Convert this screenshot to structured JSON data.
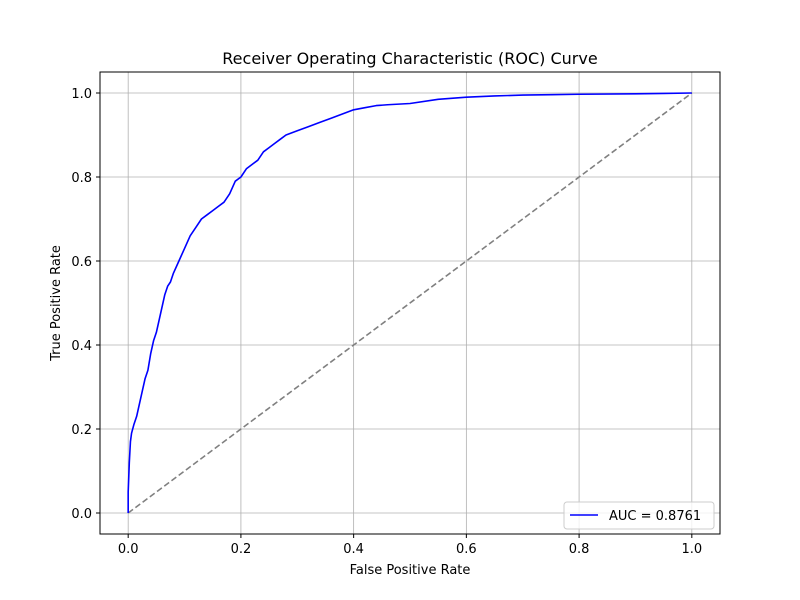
{
  "chart_data": {
    "type": "line",
    "title": "Receiver Operating Characteristic (ROC) Curve",
    "xlabel": "False Positive Rate",
    "ylabel": "True Positive Rate",
    "xlim": [
      -0.05,
      1.05
    ],
    "ylim": [
      -0.05,
      1.05
    ],
    "xticks": [
      0.0,
      0.2,
      0.4,
      0.6,
      0.8,
      1.0
    ],
    "yticks": [
      0.0,
      0.2,
      0.4,
      0.6,
      0.8,
      1.0
    ],
    "xtick_labels": [
      "0.0",
      "0.2",
      "0.4",
      "0.6",
      "0.8",
      "1.0"
    ],
    "ytick_labels": [
      "0.0",
      "0.2",
      "0.4",
      "0.6",
      "0.8",
      "1.0"
    ],
    "grid": true,
    "legend_position": "lower-right",
    "series": [
      {
        "name": "AUC = 0.8761",
        "color": "#0000ff",
        "style": "solid",
        "x": [
          0.0,
          0.0,
          0.002,
          0.004,
          0.006,
          0.01,
          0.015,
          0.02,
          0.025,
          0.03,
          0.035,
          0.04,
          0.045,
          0.05,
          0.055,
          0.06,
          0.065,
          0.07,
          0.075,
          0.08,
          0.09,
          0.1,
          0.11,
          0.12,
          0.13,
          0.14,
          0.15,
          0.16,
          0.17,
          0.18,
          0.19,
          0.2,
          0.21,
          0.22,
          0.23,
          0.24,
          0.25,
          0.26,
          0.27,
          0.28,
          0.3,
          0.32,
          0.34,
          0.36,
          0.38,
          0.4,
          0.42,
          0.44,
          0.46,
          0.5,
          0.55,
          0.6,
          0.65,
          0.7,
          0.75,
          0.8,
          0.9,
          0.95,
          1.0
        ],
        "y": [
          0.0,
          0.05,
          0.12,
          0.17,
          0.19,
          0.21,
          0.23,
          0.26,
          0.29,
          0.32,
          0.34,
          0.38,
          0.41,
          0.43,
          0.46,
          0.49,
          0.52,
          0.54,
          0.55,
          0.57,
          0.6,
          0.63,
          0.66,
          0.68,
          0.7,
          0.71,
          0.72,
          0.73,
          0.74,
          0.76,
          0.79,
          0.8,
          0.82,
          0.83,
          0.84,
          0.86,
          0.87,
          0.88,
          0.89,
          0.9,
          0.91,
          0.92,
          0.93,
          0.94,
          0.95,
          0.96,
          0.965,
          0.97,
          0.972,
          0.975,
          0.985,
          0.99,
          0.993,
          0.995,
          0.996,
          0.997,
          0.998,
          0.999,
          1.0
        ]
      },
      {
        "name": "",
        "color": "#808080",
        "style": "dashed",
        "x": [
          0.0,
          1.0
        ],
        "y": [
          0.0,
          1.0
        ]
      }
    ]
  }
}
